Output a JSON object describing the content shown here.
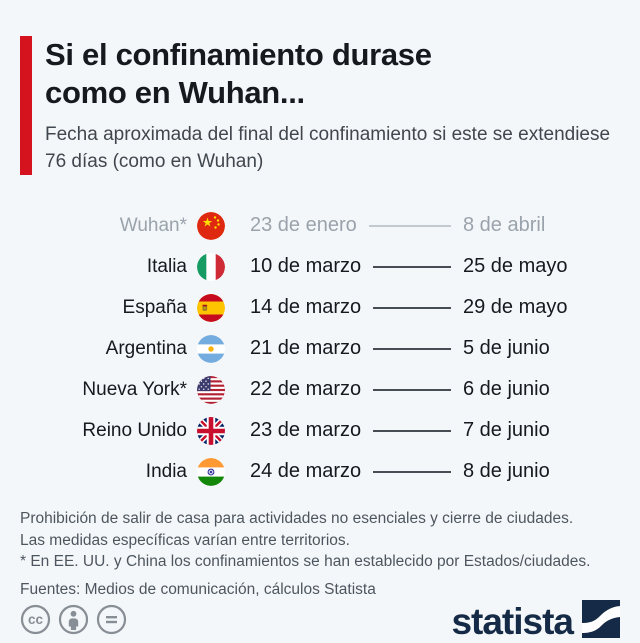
{
  "title": {
    "line1": "Si el confinamiento durase",
    "line2": "como en Wuhan..."
  },
  "subtitle": "Fecha aproximada del final del confinamiento si este se extendiese 76 días (como en Wuhan)",
  "chart_data": {
    "type": "table",
    "title": "Si el confinamiento durase como en Wuhan...",
    "subtitle": "Fecha aproximada del final del confinamiento si este se extendiese 76 días (como en Wuhan)",
    "lockdown_days": 76,
    "rows": [
      {
        "territory": "Wuhan*",
        "flag": "china",
        "start": "23 de enero",
        "end": "8 de abril",
        "muted": true
      },
      {
        "territory": "Italia",
        "flag": "italy",
        "start": "10 de marzo",
        "end": "25 de mayo",
        "muted": false
      },
      {
        "territory": "España",
        "flag": "spain",
        "start": "14 de marzo",
        "end": "29 de mayo",
        "muted": false
      },
      {
        "territory": "Argentina",
        "flag": "argentina",
        "start": "21 de marzo",
        "end": "5 de junio",
        "muted": false
      },
      {
        "territory": "Nueva York*",
        "flag": "usa",
        "start": "22 de marzo",
        "end": "6 de junio",
        "muted": false
      },
      {
        "territory": "Reino Unido",
        "flag": "uk",
        "start": "23 de marzo",
        "end": "7 de junio",
        "muted": false
      },
      {
        "territory": "India",
        "flag": "india",
        "start": "24 de marzo",
        "end": "8 de junio",
        "muted": false
      }
    ]
  },
  "notes": [
    "Prohibición de salir de casa para actividades no esenciales y cierre de ciudades.",
    "Las medidas específicas varían entre territorios.",
    "* En EE. UU. y China los confinamientos se han establecido por Estados/ciudades."
  ],
  "source": "Fuentes: Medios de comunicación, cálculos Statista",
  "footer": {
    "brand": "statista",
    "license_icons": [
      "cc-icon",
      "attribution-icon",
      "no-derivatives-icon"
    ]
  },
  "colors": {
    "background": "#f4f7f9",
    "accent_red": "#d4131e",
    "text_dark": "#16191e",
    "muted_gray": "#9aa3ac",
    "note_gray": "#4d565f",
    "brand_navy": "#152a46"
  }
}
